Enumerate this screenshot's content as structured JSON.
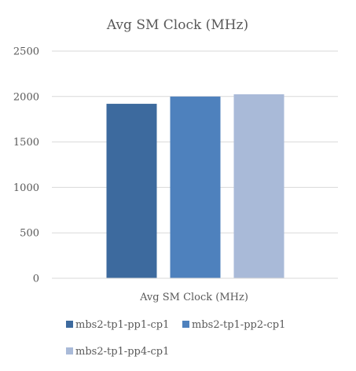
{
  "chart_data": {
    "type": "bar",
    "title": "Avg SM Clock (MHz)",
    "xlabel": "",
    "ylabel": "",
    "categories": [
      "Avg SM Clock (MHz)"
    ],
    "ylim": [
      0,
      2500
    ],
    "yticks": [
      0,
      500,
      1000,
      1500,
      2000,
      2500
    ],
    "grid": true,
    "legend_position": "bottom",
    "series": [
      {
        "name": "mbs2-tp1-pp1-cp1",
        "color": "#3d6a9e",
        "values": [
          1920
        ]
      },
      {
        "name": "mbs2-tp1-pp2-cp1",
        "color": "#4e81bd",
        "values": [
          2000
        ]
      },
      {
        "name": "mbs2-tp1-pp4-cp1",
        "color": "#a9bad8",
        "values": [
          2025
        ]
      }
    ]
  }
}
